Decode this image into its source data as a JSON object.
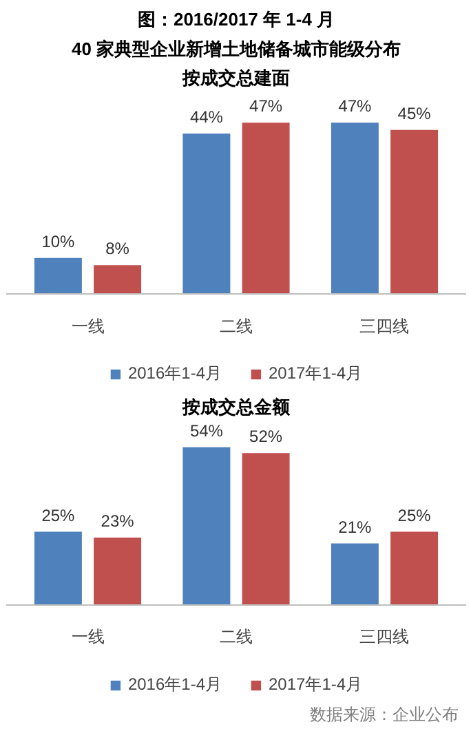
{
  "chart_data": [
    {
      "type": "bar",
      "title": "图：2016/2017 年 1-4 月",
      "subtitle": "40 家典型企业新增土地储备城市能级分布",
      "annotations": [
        "按成交总建面"
      ],
      "categories": [
        "一线",
        "二线",
        "三四线"
      ],
      "legend": "bottom",
      "grid": false,
      "series": [
        {
          "name": "2016年1-4月",
          "color": "#4f81bd",
          "values": [
            10,
            44,
            47
          ],
          "value_labels": [
            "10%",
            "44%",
            "47%"
          ]
        },
        {
          "name": "2017年1-4月",
          "color": "#c0504d",
          "values": [
            8,
            47,
            45
          ],
          "value_labels": [
            "8%",
            "47%",
            "45%"
          ]
        }
      ]
    },
    {
      "type": "bar",
      "title": "按成交总金额",
      "annotations": [
        "数据来源：企业公布"
      ],
      "categories": [
        "一线",
        "二线",
        "三四线"
      ],
      "legend": "bottom",
      "grid": false,
      "series": [
        {
          "name": "2016年1-4月",
          "color": "#4f81bd",
          "values": [
            25,
            54,
            21
          ],
          "value_labels": [
            "25%",
            "54%",
            "21%"
          ]
        },
        {
          "name": "2017年1-4月",
          "color": "#c0504d",
          "values": [
            23,
            52,
            25
          ],
          "value_labels": [
            "23%",
            "52%",
            "25%"
          ]
        }
      ]
    }
  ]
}
